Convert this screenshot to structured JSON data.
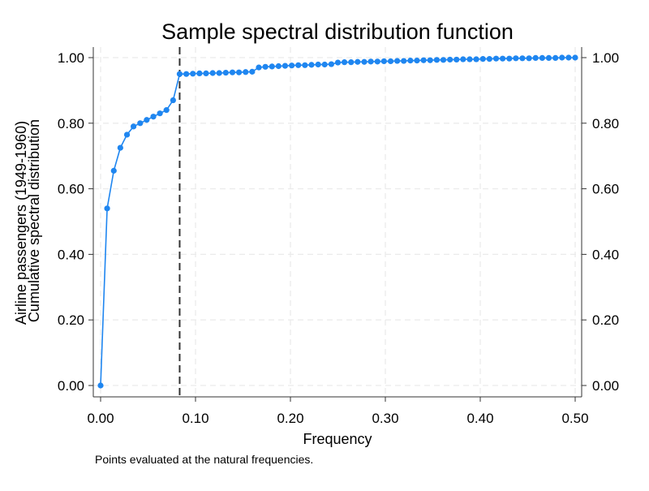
{
  "chart_data": {
    "type": "line",
    "title": "Sample spectral distribution function",
    "xlabel": "Frequency",
    "ylabel_lines": [
      "Airline passengers (1949-1960)",
      "Cumulative spectral distribution"
    ],
    "note": "Points evaluated at the natural frequencies.",
    "xlim": [
      0,
      0.5
    ],
    "ylim": [
      0,
      1
    ],
    "xticks": [
      0,
      0.1,
      0.2,
      0.3,
      0.4,
      0.5
    ],
    "xtick_labels": [
      "0.00",
      "0.10",
      "0.20",
      "0.30",
      "0.40",
      "0.50"
    ],
    "yticks": [
      0,
      0.2,
      0.4,
      0.6,
      0.8,
      1.0
    ],
    "ytick_labels": [
      "0.00",
      "0.20",
      "0.40",
      "0.60",
      "0.80",
      "1.00"
    ],
    "right_axis": true,
    "grid": true,
    "reference_line_x": 0.0833,
    "marker_color": "#1f86f0",
    "reference_line_color": "#333333",
    "x": [
      0.0,
      0.0069,
      0.0139,
      0.0208,
      0.0278,
      0.0347,
      0.0417,
      0.0486,
      0.0556,
      0.0625,
      0.0694,
      0.0764,
      0.0833,
      0.0903,
      0.0972,
      0.1042,
      0.1111,
      0.1181,
      0.125,
      0.1319,
      0.1389,
      0.1458,
      0.1528,
      0.1597,
      0.1667,
      0.1736,
      0.1806,
      0.1875,
      0.1944,
      0.2014,
      0.2083,
      0.2153,
      0.2222,
      0.2292,
      0.2361,
      0.2431,
      0.25,
      0.2569,
      0.2639,
      0.2708,
      0.2778,
      0.2847,
      0.2917,
      0.2986,
      0.3056,
      0.3125,
      0.3194,
      0.3264,
      0.3333,
      0.3403,
      0.3472,
      0.3542,
      0.3611,
      0.3681,
      0.375,
      0.3819,
      0.3889,
      0.3958,
      0.4028,
      0.4097,
      0.4167,
      0.4236,
      0.4306,
      0.4375,
      0.4444,
      0.4514,
      0.4583,
      0.4653,
      0.4722,
      0.4792,
      0.4861,
      0.4931,
      0.5
    ],
    "y": [
      0.0,
      0.54,
      0.655,
      0.725,
      0.765,
      0.79,
      0.8,
      0.81,
      0.82,
      0.83,
      0.84,
      0.87,
      0.95,
      0.95,
      0.951,
      0.952,
      0.952,
      0.953,
      0.953,
      0.954,
      0.955,
      0.955,
      0.956,
      0.957,
      0.97,
      0.972,
      0.973,
      0.974,
      0.975,
      0.976,
      0.977,
      0.977,
      0.978,
      0.979,
      0.979,
      0.98,
      0.985,
      0.986,
      0.986,
      0.987,
      0.987,
      0.988,
      0.988,
      0.989,
      0.989,
      0.99,
      0.99,
      0.991,
      0.991,
      0.992,
      0.992,
      0.993,
      0.993,
      0.994,
      0.994,
      0.995,
      0.995,
      0.995,
      0.996,
      0.996,
      0.997,
      0.997,
      0.997,
      0.998,
      0.998,
      0.998,
      0.999,
      0.999,
      0.999,
      0.999,
      1.0,
      1.0,
      1.0
    ]
  }
}
